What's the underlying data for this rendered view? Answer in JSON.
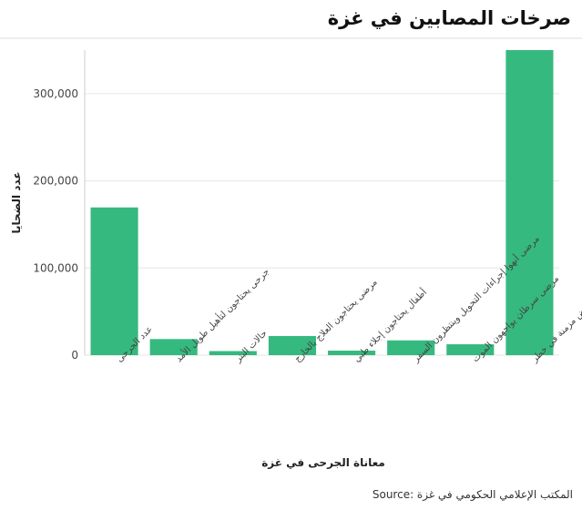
{
  "chart_data": {
    "type": "bar",
    "title": "صرخات المصابين في غزة",
    "xlabel": "معاناة الجرحى في غزة",
    "ylabel": "عدد الضحايا",
    "categories": [
      "عدد الجرحى",
      "جرحى يحتاجون لتأهيل طويل الأمد",
      "حالات البتر",
      "مرضى يحتاجون العلاج بالخارج",
      "أطفال يحتاجون إجلاء طبي",
      "مرضى أنهوا إجراءات التحويل وينتظرون السفر",
      "مرضى سرطان يواجهون الموت",
      "مرضى أمراض مزمنة في خطر"
    ],
    "values": [
      169500,
      18500,
      4700,
      22000,
      5200,
      17000,
      12500,
      350000
    ],
    "ylim": [
      0,
      350000
    ],
    "yticks": [
      0,
      100000,
      200000,
      300000
    ],
    "ytick_labels": [
      "0",
      "100,000",
      "200,000",
      "300,000"
    ],
    "grid": true,
    "color": "#36b97e",
    "source": "المكتب الإعلامي الحكومي في غزة :Source"
  }
}
